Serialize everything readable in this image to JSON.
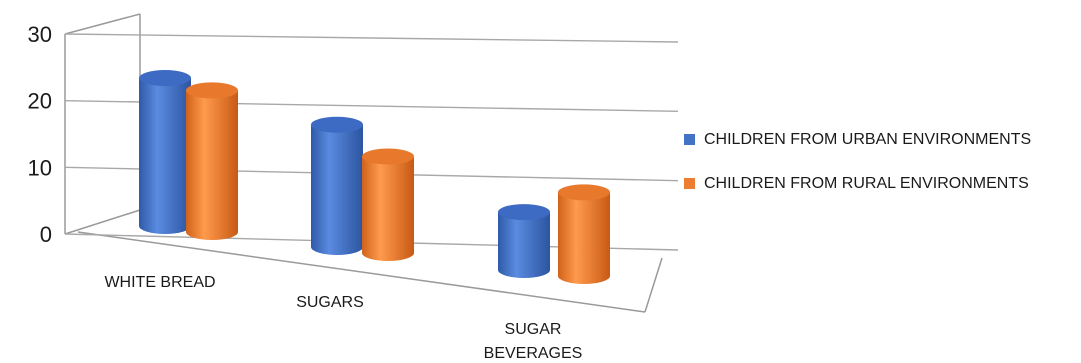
{
  "chart_data": {
    "type": "bar",
    "style": "3d-cylinder",
    "categories": [
      "WHITE BREAD",
      "SUGARS",
      "SUGAR BEVERAGES"
    ],
    "series": [
      {
        "name": "CHILDREN FROM URBAN ENVIRONMENTS",
        "color": "#4472C4",
        "values": [
          23,
          19,
          9
        ]
      },
      {
        "name": "CHILDREN FROM RURAL ENVIRONMENTS",
        "color": "#ED7D31",
        "values": [
          22,
          15,
          13
        ]
      }
    ],
    "yticks": [
      0,
      10,
      20,
      30
    ],
    "ylim": [
      0,
      30
    ],
    "grid": true,
    "legend_position": "right"
  }
}
